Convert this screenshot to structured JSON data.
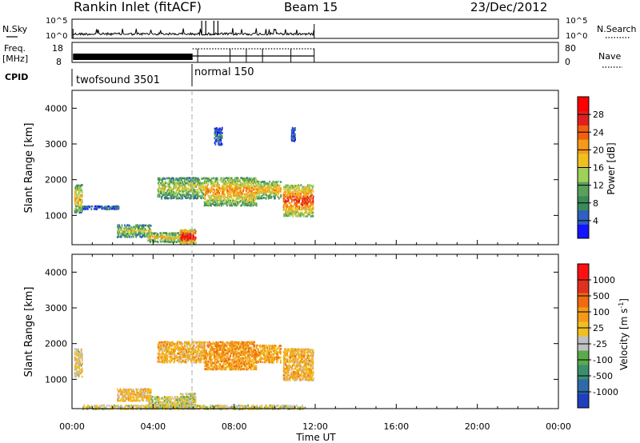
{
  "header": {
    "station": "Rankin Inlet (fitACF)",
    "beam": "Beam 15",
    "date": "23/Dec/2012"
  },
  "top_panels": {
    "nsky_label": "N.Sky",
    "nsky_ticks": [
      "10^5",
      "10^0"
    ],
    "nsearch_label": "N.Search",
    "nsearch_ticks": [
      "10^5",
      "10^0"
    ],
    "freq_label": "Freq.",
    "freq_unit": "[MHz]",
    "freq_ticks": [
      "18",
      "8"
    ],
    "nave_label": "Nave",
    "nave_ticks": [
      "80",
      "0"
    ],
    "cpid_label": "CPID",
    "cpid_segments": [
      {
        "start_hour": 0,
        "label": "twofsound 3501"
      },
      {
        "start_hour": 6,
        "label": "normal 150"
      }
    ]
  },
  "colorbars": {
    "power": {
      "label": "Power [dB]",
      "ticks": [
        "4",
        "8",
        "12",
        "16",
        "20",
        "24",
        "28"
      ],
      "colors": [
        "#1414ff",
        "#2f5fc0",
        "#3a8a5a",
        "#5aa05a",
        "#9ed05a",
        "#f0c020",
        "#f59a18",
        "#f06010",
        "#e02020",
        "#ff0000"
      ]
    },
    "velocity": {
      "label": "Velocity [m s",
      "label_superscript": "-1",
      "label_close": "]",
      "ticks": [
        "1000",
        "500",
        "100",
        "25",
        "-25",
        "-100",
        "-500",
        "-1000"
      ],
      "colors": [
        "#1f3fbf",
        "#2e6aa8",
        "#3b8e6e",
        "#5aab4a",
        "#c0c0c0",
        "#f0c020",
        "#f59a18",
        "#f06a10",
        "#e03020",
        "#ff1010"
      ]
    }
  },
  "axes": {
    "ylabel": "Slant Range [km]",
    "xlabel": "Time UT",
    "yticks": [
      "1000",
      "2000",
      "3000",
      "4000"
    ],
    "xticks": [
      "00:00",
      "04:00",
      "08:00",
      "12:00",
      "16:00",
      "20:00",
      "00:00"
    ]
  },
  "chart_data": [
    {
      "type": "heatmap",
      "name": "power",
      "x_unit": "hour UT",
      "y_unit": "km",
      "xlim": [
        0,
        24
      ],
      "ylim": [
        180,
        4500
      ],
      "vmin": 0,
      "vmax": 32,
      "blobs": [
        {
          "t": [
            0.1,
            0.5
          ],
          "r": [
            1100,
            1900
          ],
          "v": 18
        },
        {
          "t": [
            0.5,
            2.3
          ],
          "r": [
            1200,
            1300
          ],
          "v": 6
        },
        {
          "t": [
            2.2,
            3.9
          ],
          "r": [
            420,
            780
          ],
          "v": 14
        },
        {
          "t": [
            3.7,
            5.9
          ],
          "r": [
            280,
            560
          ],
          "v": 17
        },
        {
          "t": [
            5.3,
            6.1
          ],
          "r": [
            220,
            650
          ],
          "v": 28
        },
        {
          "t": [
            4.2,
            6.5
          ],
          "r": [
            1500,
            2100
          ],
          "v": 15
        },
        {
          "t": [
            6.5,
            9.1
          ],
          "r": [
            1300,
            2100
          ],
          "v": 20
        },
        {
          "t": [
            9.1,
            10.3
          ],
          "r": [
            1500,
            2000
          ],
          "v": 18
        },
        {
          "t": [
            10.4,
            11.9
          ],
          "r": [
            1000,
            1900
          ],
          "v": 24
        },
        {
          "t": [
            7.0,
            7.4
          ],
          "r": [
            3000,
            3500
          ],
          "v": 6
        },
        {
          "t": [
            10.8,
            11.0
          ],
          "r": [
            3100,
            3500
          ],
          "v": 5
        }
      ]
    },
    {
      "type": "heatmap",
      "name": "velocity",
      "x_unit": "hour UT",
      "y_unit": "km",
      "xlim": [
        0,
        24
      ],
      "ylim": [
        180,
        4500
      ],
      "vmin": -1000,
      "vmax": 1000,
      "blobs": [
        {
          "t": [
            0.1,
            0.5
          ],
          "r": [
            1100,
            1900
          ],
          "v": 40
        },
        {
          "t": [
            2.2,
            3.9
          ],
          "r": [
            420,
            780
          ],
          "v": 120
        },
        {
          "t": [
            3.7,
            5.9
          ],
          "r": [
            200,
            560
          ],
          "v": -80
        },
        {
          "t": [
            5.3,
            6.1
          ],
          "r": [
            220,
            650
          ],
          "v": -60
        },
        {
          "t": [
            4.2,
            6.5
          ],
          "r": [
            1500,
            2100
          ],
          "v": 200
        },
        {
          "t": [
            6.5,
            9.1
          ],
          "r": [
            1300,
            2100
          ],
          "v": 300
        },
        {
          "t": [
            9.1,
            10.3
          ],
          "r": [
            1500,
            2000
          ],
          "v": 250
        },
        {
          "t": [
            10.4,
            11.9
          ],
          "r": [
            1000,
            1900
          ],
          "v": 180
        },
        {
          "t": [
            0.5,
            11.5
          ],
          "r": [
            190,
            320
          ],
          "v": -40
        }
      ]
    }
  ]
}
